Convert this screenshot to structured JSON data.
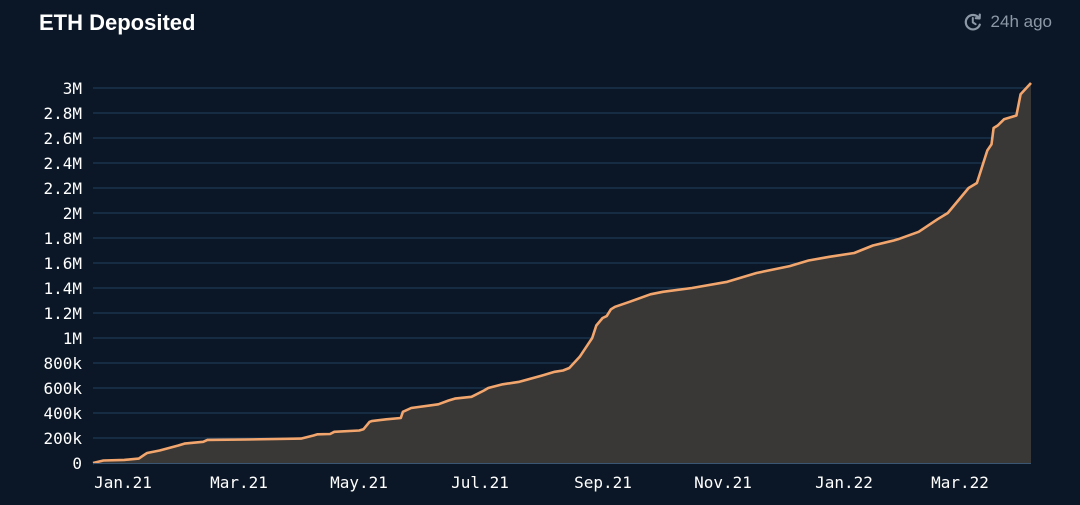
{
  "header": {
    "title": "ETH Deposited",
    "refresh_icon": "refresh-clock-icon",
    "updated_label": "24h ago"
  },
  "colors": {
    "background": "#0b1726",
    "line": "#f2a66d",
    "area": "#3a3737",
    "grid": "#21405f",
    "text": "#ffffff",
    "muted": "#8d98a7"
  },
  "chart_data": {
    "type": "area",
    "xlabel": "",
    "ylabel": "",
    "xlim": [
      "2020-12-31",
      "2022-03-27"
    ],
    "ylim": [
      0,
      3000000
    ],
    "grid": true,
    "legend": "none",
    "x_ticks": [
      "Jan.21",
      "Mar.21",
      "May.21",
      "Jul.21",
      "Sep.21",
      "Nov.21",
      "Jan.22",
      "Mar.22"
    ],
    "y_ticks": [
      "0",
      "200k",
      "400k",
      "600k",
      "800k",
      "1M",
      "1.2M",
      "1.4M",
      "1.6M",
      "1.8M",
      "2M",
      "2.2M",
      "2.4M",
      "2.6M",
      "2.8M",
      "3M"
    ],
    "series": [
      {
        "x": [
          "2020-12-31",
          "2021-01-05",
          "2021-01-15",
          "2021-01-22",
          "2021-01-25",
          "2021-01-26",
          "2021-02-01",
          "2021-02-10",
          "2021-02-13",
          "2021-02-22",
          "2021-02-24",
          "2021-03-15",
          "2021-04-10",
          "2021-04-16",
          "2021-04-18",
          "2021-04-24",
          "2021-04-26",
          "2021-05-08",
          "2021-05-10",
          "2021-05-13",
          "2021-05-14",
          "2021-05-21",
          "2021-05-28",
          "2021-05-29",
          "2021-06-02",
          "2021-06-15",
          "2021-06-20",
          "2021-06-23",
          "2021-07-01",
          "2021-07-07",
          "2021-07-09",
          "2021-07-16",
          "2021-07-24",
          "2021-08-04",
          "2021-08-10",
          "2021-08-14",
          "2021-08-17",
          "2021-08-22",
          "2021-08-26",
          "2021-08-28",
          "2021-08-30",
          "2021-09-02",
          "2021-09-04",
          "2021-09-06",
          "2021-09-08",
          "2021-09-15",
          "2021-09-25",
          "2021-10-01",
          "2021-10-15",
          "2021-11-01",
          "2021-11-15",
          "2021-12-01",
          "2021-12-10",
          "2021-12-20",
          "2022-01-01",
          "2022-01-10",
          "2022-01-20",
          "2022-01-22",
          "2022-02-01",
          "2022-02-10",
          "2022-02-15",
          "2022-02-25",
          "2022-03-01",
          "2022-03-06",
          "2022-03-08",
          "2022-03-09",
          "2022-03-11",
          "2022-03-14",
          "2022-03-20",
          "2022-03-22",
          "2022-03-27"
        ],
        "y": [
          0,
          20000,
          25000,
          35000,
          70000,
          80000,
          100000,
          140000,
          155000,
          170000,
          185000,
          188000,
          195000,
          220000,
          230000,
          232000,
          250000,
          260000,
          270000,
          330000,
          335000,
          350000,
          360000,
          410000,
          440000,
          470000,
          500000,
          515000,
          530000,
          580000,
          600000,
          630000,
          650000,
          700000,
          730000,
          740000,
          760000,
          850000,
          950000,
          1000000,
          1100000,
          1160000,
          1175000,
          1230000,
          1250000,
          1290000,
          1350000,
          1370000,
          1400000,
          1450000,
          1520000,
          1575000,
          1620000,
          1650000,
          1680000,
          1740000,
          1780000,
          1790000,
          1850000,
          1950000,
          2000000,
          2200000,
          2240000,
          2500000,
          2550000,
          2680000,
          2700000,
          2750000,
          2780000,
          2950000,
          3040000
        ]
      }
    ]
  }
}
